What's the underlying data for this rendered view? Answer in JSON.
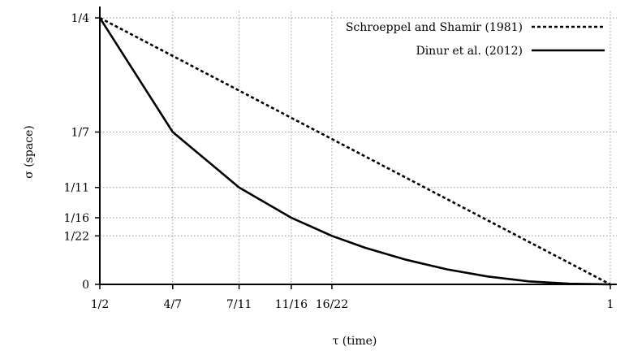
{
  "chart_data": {
    "type": "line",
    "xlabel": "τ (time)",
    "ylabel": "σ (space)",
    "xlim": [
      0.5,
      1.0
    ],
    "ylim": [
      0.0,
      0.25
    ],
    "grid": true,
    "legend_position": "top-right",
    "x_ticks": [
      {
        "value": 0.5,
        "label": "1/2"
      },
      {
        "value": 0.5714,
        "label": "4/7"
      },
      {
        "value": 0.6364,
        "label": "7/11"
      },
      {
        "value": 0.6875,
        "label": "11/16"
      },
      {
        "value": 0.7273,
        "label": "16/22"
      },
      {
        "value": 1.0,
        "label": "1"
      }
    ],
    "y_ticks": [
      {
        "value": 0.0,
        "label": "0"
      },
      {
        "value": 0.0455,
        "label": "1/22"
      },
      {
        "value": 0.0625,
        "label": "1/16"
      },
      {
        "value": 0.0909,
        "label": "1/11"
      },
      {
        "value": 0.1429,
        "label": "1/7"
      },
      {
        "value": 0.25,
        "label": "1/4"
      }
    ],
    "series": [
      {
        "name": "Schroeppel and Shamir (1981)",
        "style": "dashed",
        "color": "#000000",
        "x": [
          0.5,
          1.0
        ],
        "y": [
          0.25,
          0.0
        ]
      },
      {
        "name": "Dinur et al. (2012)",
        "style": "solid",
        "color": "#000000",
        "x": [
          0.5,
          0.5714,
          0.6364,
          0.6875,
          0.7273,
          0.76,
          0.8,
          0.84,
          0.88,
          0.92,
          0.96,
          1.0
        ],
        "y": [
          0.25,
          0.1429,
          0.0909,
          0.0625,
          0.0455,
          0.0343,
          0.0231,
          0.0141,
          0.0074,
          0.0028,
          0.0006,
          0.0
        ]
      }
    ]
  }
}
